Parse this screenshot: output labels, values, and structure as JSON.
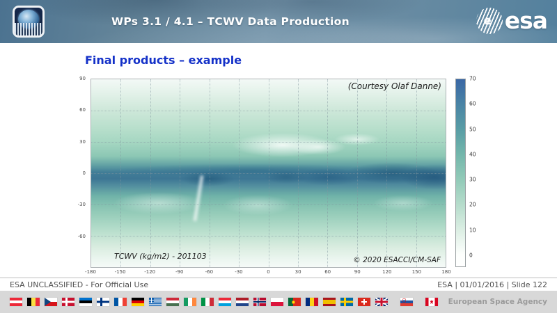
{
  "header": {
    "title": "WPs 3.1 / 4.1 – TCWV Data Production",
    "esa_wordmark": "esa",
    "esa_globe_letter": "e"
  },
  "content": {
    "heading": "Final products – example",
    "courtesy_note": "(Courtesy Olaf Danne)",
    "map_caption": "TCWV (kg/m2) - 201103",
    "copyright": "© 2020 ESACCI/CM-SAF"
  },
  "chart_data": {
    "type": "heatmap",
    "title": "TCWV (kg/m2) - 201103",
    "variable": "TCWV (kg/m2)",
    "period": "201103",
    "xlim": [
      -180,
      180
    ],
    "ylim": [
      -90,
      90
    ],
    "x_ticks": [
      -180,
      -150,
      -120,
      -90,
      -60,
      -30,
      0,
      30,
      60,
      90,
      120,
      150,
      180
    ],
    "y_ticks": [
      90,
      60,
      30,
      0,
      -30,
      -60
    ],
    "grid": true,
    "colorbar": {
      "min": 0,
      "max": 70,
      "ticks": [
        0,
        10,
        20,
        30,
        40,
        50,
        60,
        70
      ],
      "top_color": "#3a67a5",
      "bottom_color": "#ffffff"
    },
    "pattern_summary": "Global map of total column water vapour for March 2011: high values (50-70, dark blue band) along the equator/ITCZ especially over the western Pacific, Indian Ocean, Amazon and equatorial Africa; moderate values (20-40, green) in mid-latitudes; low values (<10, white) over the poles, the Sahara/Arabia, Tibet and the Andes."
  },
  "footer": {
    "classification": "ESA UNCLASSIFIED - For Official Use",
    "slide_info": "ESA | 01/01/2016 | Slide 122",
    "agency_name": "European Space Agency",
    "flags": [
      {
        "name": "Austria",
        "code": "at"
      },
      {
        "name": "Belgium",
        "code": "be"
      },
      {
        "name": "Czech Republic",
        "code": "cz"
      },
      {
        "name": "Denmark",
        "code": "dk"
      },
      {
        "name": "Estonia",
        "code": "ee"
      },
      {
        "name": "Finland",
        "code": "fi"
      },
      {
        "name": "France",
        "code": "fr"
      },
      {
        "name": "Germany",
        "code": "de"
      },
      {
        "name": "Greece",
        "code": "gr"
      },
      {
        "name": "Hungary",
        "code": "hu"
      },
      {
        "name": "Ireland",
        "code": "ie"
      },
      {
        "name": "Italy",
        "code": "it"
      },
      {
        "name": "Luxembourg",
        "code": "lu"
      },
      {
        "name": "Netherlands",
        "code": "nl"
      },
      {
        "name": "Norway",
        "code": "no"
      },
      {
        "name": "Poland",
        "code": "pl"
      },
      {
        "name": "Portugal",
        "code": "pt"
      },
      {
        "name": "Romania",
        "code": "ro"
      },
      {
        "name": "Spain",
        "code": "es"
      },
      {
        "name": "Sweden",
        "code": "se"
      },
      {
        "name": "Switzerland",
        "code": "ch"
      },
      {
        "name": "United Kingdom",
        "code": "gb"
      },
      {
        "name": "Slovenia",
        "code": "si",
        "gap_before": true
      },
      {
        "name": "Canada",
        "code": "ca",
        "gap_before": true
      }
    ]
  },
  "colors": {
    "heading_blue": "#1431c8",
    "header_slate": "#6a8ca3",
    "flag_band_gray": "#d8d8d8",
    "equator_band_teal": "#3d7694",
    "map_light_mint": "#f3f9f6"
  }
}
